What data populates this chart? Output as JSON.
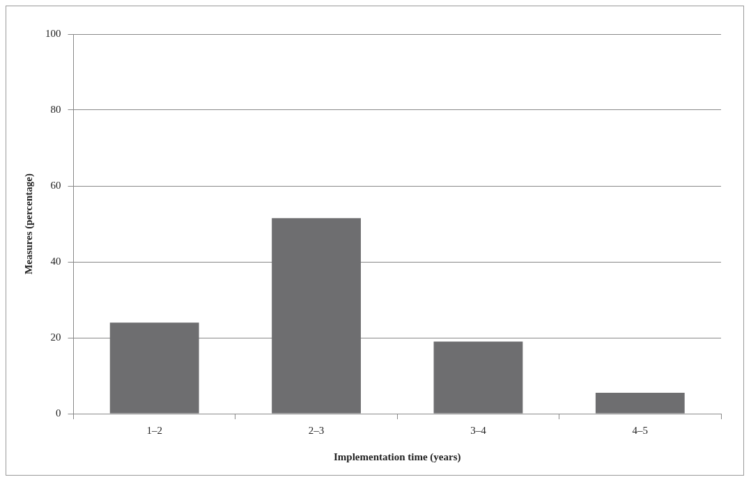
{
  "chart_data": {
    "type": "bar",
    "xlabel": "Implementation time (years)",
    "ylabel": "Measures (percentage)",
    "categories": [
      "1–2",
      "2–3",
      "3–4",
      "4–5"
    ],
    "values": [
      24,
      51.5,
      19,
      5.5
    ],
    "color": "#6e6e70",
    "ylim": [
      0,
      100
    ],
    "yticks": [
      0,
      20,
      40,
      60,
      80,
      100
    ],
    "grid": "y",
    "legend": false
  }
}
